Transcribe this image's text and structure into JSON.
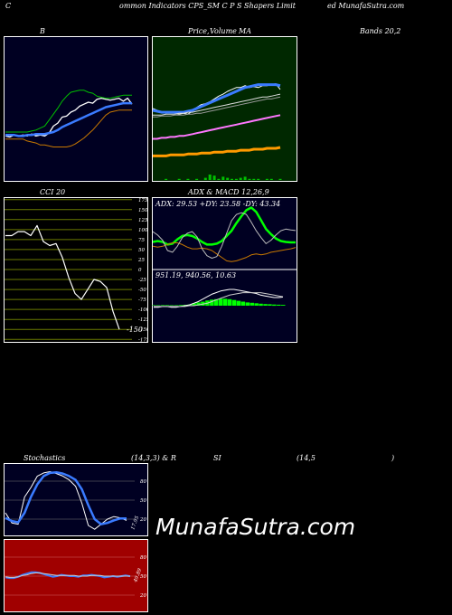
{
  "header": {
    "c": "C",
    "left": "ommon  Indicators CPS_SM C P S Shapers Limit",
    "right": "ed MunafaSutra.com"
  },
  "labels": {
    "bb": "B",
    "price": "Price,",
    "volume": "Volume",
    "ma": "MA",
    "bands": "Bands 20,2",
    "cci": "CCI 20",
    "adx": "ADX  & MACD 12,26,9",
    "adx_vals": "ADX: 29.53  +DY: 23.58  -DY: 43.34",
    "macd_vals": "951.19,  940.56,  10.63",
    "stoch": "Stochastics",
    "stoch_params": "(14,3,3) & R",
    "si": "SI",
    "rsi_params": "(14,5",
    "paren": ")",
    "stoch_level": "17.95",
    "rsi_level": "49.89",
    "watermark": "MunafaSutra.com"
  },
  "chart_data": [
    {
      "id": "bollinger",
      "type": "line",
      "series": [
        {
          "role": "price",
          "color": "#ffffff",
          "values": [
            36,
            35,
            37,
            36,
            37,
            36,
            38,
            36,
            37,
            36,
            39,
            46,
            49,
            55,
            56,
            60,
            62,
            66,
            68,
            70,
            69,
            73,
            74,
            73,
            72,
            73,
            74,
            71,
            74,
            68
          ]
        },
        {
          "role": "middle",
          "color": "#3a7bff",
          "values": [
            37,
            37,
            37,
            36,
            36,
            37,
            37,
            38,
            38,
            38,
            39,
            40,
            42,
            45,
            47,
            49,
            51,
            53,
            55,
            57,
            59,
            61,
            63,
            65,
            66,
            67,
            68,
            69,
            69,
            69
          ]
        },
        {
          "role": "upper",
          "color": "#00c000",
          "values": [
            40,
            40,
            40,
            40,
            40,
            40,
            41,
            42,
            44,
            46,
            52,
            58,
            64,
            71,
            76,
            80,
            81,
            82,
            82,
            80,
            79,
            76,
            75,
            74,
            74,
            75,
            76,
            77,
            77,
            77
          ]
        },
        {
          "role": "lower",
          "color": "#c87800",
          "values": [
            33,
            33,
            33,
            33,
            33,
            31,
            30,
            29,
            27,
            27,
            26,
            25,
            25,
            25,
            25,
            26,
            28,
            31,
            34,
            38,
            42,
            47,
            52,
            57,
            60,
            61,
            62,
            62,
            62,
            62
          ]
        }
      ]
    },
    {
      "id": "price_ma",
      "type": "line",
      "series": [
        {
          "role": "price",
          "color": "#ffffff",
          "values": [
            62,
            60,
            58,
            57,
            58,
            57,
            56,
            57,
            56,
            59,
            63,
            66,
            67,
            69,
            72,
            75,
            77,
            80,
            82,
            84,
            84,
            86,
            84,
            85,
            84,
            86,
            86,
            87,
            88,
            82
          ]
        },
        {
          "role": "ma_blue",
          "color": "#3a7bff",
          "values": [
            60,
            59,
            58,
            58,
            58,
            58,
            58,
            58,
            59,
            60,
            62,
            64,
            66,
            68,
            70,
            72,
            74,
            76,
            78,
            80,
            82,
            84,
            85,
            86,
            87,
            87,
            87,
            87,
            87,
            86
          ]
        },
        {
          "role": "ma_white",
          "color": "#dddddd",
          "values": [
            55,
            55,
            55,
            56,
            56,
            56,
            57,
            57,
            58,
            58,
            59,
            60,
            61,
            62,
            63,
            64,
            65,
            66,
            67,
            68,
            69,
            70,
            71,
            72,
            73,
            74,
            74,
            75,
            76,
            77
          ]
        },
        {
          "role": "ma_grey",
          "color": "#999999",
          "values": [
            53,
            53,
            54,
            54,
            54,
            55,
            55,
            55,
            56,
            56,
            57,
            57,
            58,
            59,
            60,
            61,
            62,
            63,
            64,
            65,
            66,
            67,
            68,
            69,
            70,
            71,
            72,
            72,
            73,
            74
          ]
        },
        {
          "role": "ma_pink",
          "color": "#ff77ff",
          "values": [
            30,
            30,
            31,
            31,
            32,
            32,
            33,
            33,
            34,
            35,
            36,
            37,
            38,
            39,
            40,
            41,
            42,
            43,
            44,
            45,
            46,
            47,
            48,
            49,
            50,
            51,
            52,
            53,
            54,
            55
          ]
        },
        {
          "role": "ma_orange",
          "color": "#ff9a00",
          "values": [
            12,
            12,
            12,
            12,
            13,
            13,
            13,
            13,
            14,
            14,
            14,
            15,
            15,
            15,
            16,
            16,
            16,
            17,
            17,
            17,
            18,
            18,
            18,
            19,
            19,
            19,
            20,
            20,
            20,
            21
          ]
        }
      ],
      "volume": [
        0,
        0,
        0,
        1,
        0,
        0,
        1,
        0,
        1,
        0,
        1,
        0,
        2,
        5,
        4,
        1,
        3,
        2,
        1,
        1,
        2,
        3,
        1,
        1,
        1,
        0,
        1,
        1,
        0,
        1
      ]
    },
    {
      "id": "cci",
      "type": "line",
      "ylim": [
        -175,
        175
      ],
      "ticks": [
        175,
        150,
        125,
        100,
        75,
        50,
        25,
        0,
        -25,
        -50,
        -75,
        -100,
        -125,
        -150,
        -175
      ],
      "last_label": "-150",
      "values": [
        85,
        85,
        95,
        95,
        85,
        110,
        70,
        60,
        65,
        30,
        -20,
        -60,
        -75,
        -50,
        -25,
        -30,
        -45,
        -105,
        -150
      ]
    },
    {
      "id": "adx",
      "type": "line",
      "series": [
        {
          "role": "adx",
          "color": "#00ff00",
          "values": [
            30,
            31,
            30,
            27,
            28,
            33,
            37,
            38,
            37,
            34,
            30,
            27,
            27,
            28,
            31,
            37,
            43,
            52,
            60,
            67,
            70,
            65,
            55,
            45,
            39,
            34,
            31,
            30,
            29.5,
            29.5
          ]
        },
        {
          "role": "plus_di",
          "color": "#c87800",
          "values": [
            25,
            24,
            25,
            27,
            29,
            29,
            27,
            24,
            22,
            22,
            23,
            22,
            20,
            16,
            12,
            8,
            7,
            8,
            10,
            12,
            15,
            16,
            15,
            16,
            18,
            19,
            20,
            21,
            22,
            23.6
          ]
        },
        {
          "role": "minus_di",
          "color": "#bbbbbb",
          "values": [
            42,
            38,
            32,
            20,
            18,
            25,
            35,
            40,
            42,
            36,
            22,
            14,
            11,
            13,
            25,
            40,
            55,
            62,
            64,
            62,
            53,
            43,
            35,
            28,
            32,
            38,
            43,
            45,
            44,
            43.3
          ]
        }
      ]
    },
    {
      "id": "macd",
      "type": "bar",
      "series": [
        {
          "role": "macd",
          "color": "#ffffff",
          "values": [
            -2,
            -2,
            -1,
            -1,
            -2,
            -2,
            -1,
            0,
            1,
            3,
            5,
            8,
            11,
            14,
            16,
            18,
            19,
            20,
            20,
            19,
            18,
            17,
            16,
            15,
            13,
            12,
            11,
            10,
            10,
            10.6
          ]
        },
        {
          "role": "signal",
          "color": "#cccccc",
          "values": [
            -1,
            -1,
            -1,
            -1,
            -1,
            -1,
            -1,
            -1,
            0,
            0,
            1,
            2,
            3,
            5,
            7,
            9,
            11,
            13,
            14,
            15,
            16,
            16,
            16,
            16,
            16,
            15,
            14,
            13,
            12,
            11
          ]
        }
      ],
      "histogram": [
        0.5,
        0.5,
        0.7,
        0.7,
        0.5,
        0.5,
        0.8,
        1,
        1.5,
        3,
        4,
        5,
        6.5,
        7.5,
        8,
        8.5,
        8.5,
        8,
        7,
        6,
        5,
        4,
        3.5,
        3,
        2.5,
        2,
        1.8,
        1.5,
        1.2,
        1
      ]
    },
    {
      "id": "stochastics",
      "type": "line",
      "ylim": [
        0,
        100
      ],
      "ticks": [
        80,
        50,
        20
      ],
      "series": [
        {
          "role": "k",
          "color": "#ffffff",
          "values": [
            30,
            14,
            12,
            55,
            70,
            88,
            93,
            95,
            92,
            88,
            82,
            72,
            45,
            10,
            4,
            12,
            20,
            24,
            22,
            18
          ]
        },
        {
          "role": "d",
          "color": "#3a7bff",
          "values": [
            22,
            17,
            15,
            30,
            55,
            75,
            88,
            93,
            94,
            92,
            88,
            82,
            67,
            42,
            20,
            12,
            14,
            18,
            21,
            21
          ]
        }
      ]
    },
    {
      "id": "rsi",
      "type": "line",
      "ylim": [
        0,
        100
      ],
      "ticks": [
        80,
        50,
        20
      ],
      "series": [
        {
          "role": "rsi",
          "color": "#3a7bff",
          "values": [
            48,
            47,
            47,
            49,
            52,
            54,
            56,
            56,
            55,
            53,
            51,
            49,
            50,
            52,
            51,
            50,
            50,
            49,
            51,
            51,
            52,
            51,
            50,
            48,
            49,
            50,
            49,
            50,
            51,
            49.9
          ]
        },
        {
          "role": "rsi_avg",
          "color": "#cccccc",
          "values": [
            49,
            48,
            48,
            49,
            51,
            52,
            54,
            55,
            55,
            54,
            53,
            52,
            51,
            51,
            51,
            51,
            51,
            50,
            50,
            50,
            51,
            51,
            51,
            50,
            50,
            50,
            50,
            50,
            50,
            50
          ]
        }
      ]
    }
  ]
}
